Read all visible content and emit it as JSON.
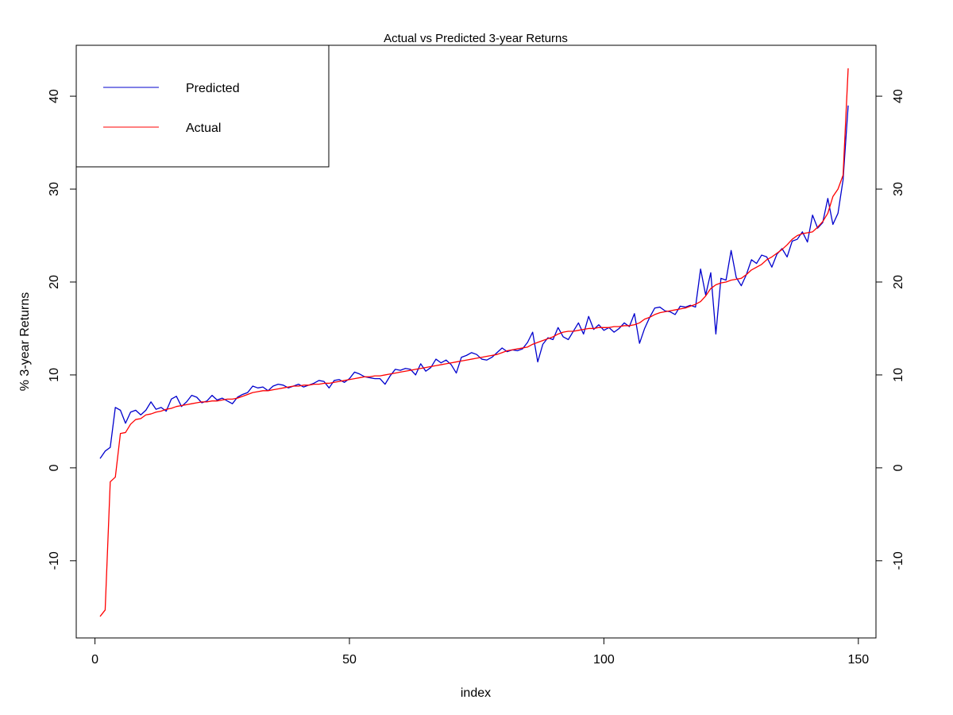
{
  "chart_data": {
    "type": "line",
    "title": "Actual vs Predicted 3-year Returns",
    "xlabel": "index",
    "ylabel": "% 3-year Returns",
    "xlim": [
      1,
      148
    ],
    "ylim": [
      -16,
      43
    ],
    "x_ticks": [
      "0",
      "50",
      "100",
      "150"
    ],
    "y_ticks": [
      "-10",
      "0",
      "10",
      "20",
      "30",
      "40"
    ],
    "right_y_ticks": [
      "-10",
      "0",
      "10",
      "20",
      "30",
      "40"
    ],
    "legend_position": "top-left",
    "series": [
      {
        "name": "Predicted",
        "color": "#0000CD",
        "values": [
          1.0,
          1.8,
          2.2,
          6.5,
          6.2,
          4.8,
          6.0,
          6.2,
          5.7,
          6.2,
          7.1,
          6.3,
          6.5,
          6.1,
          7.4,
          7.7,
          6.6,
          7.1,
          7.8,
          7.6,
          7.0,
          7.2,
          7.8,
          7.3,
          7.5,
          7.2,
          6.9,
          7.6,
          7.9,
          8.1,
          8.8,
          8.6,
          8.7,
          8.3,
          8.8,
          9.0,
          8.9,
          8.6,
          8.8,
          9.0,
          8.7,
          8.9,
          9.1,
          9.4,
          9.3,
          8.6,
          9.4,
          9.5,
          9.2,
          9.6,
          10.3,
          10.1,
          9.8,
          9.7,
          9.6,
          9.6,
          9.0,
          9.9,
          10.6,
          10.5,
          10.7,
          10.6,
          10.0,
          11.2,
          10.4,
          10.8,
          11.7,
          11.3,
          11.6,
          11.1,
          10.2,
          11.9,
          12.1,
          12.4,
          12.2,
          11.7,
          11.6,
          11.9,
          12.4,
          12.9,
          12.5,
          12.7,
          12.6,
          12.8,
          13.5,
          14.6,
          11.4,
          13.3,
          14.0,
          13.8,
          15.1,
          14.1,
          13.8,
          14.7,
          15.6,
          14.4,
          16.3,
          14.9,
          15.4,
          14.8,
          15.1,
          14.6,
          15.0,
          15.6,
          15.2,
          16.6,
          13.4,
          15.0,
          16.2,
          17.2,
          17.3,
          16.9,
          16.8,
          16.5,
          17.4,
          17.3,
          17.5,
          17.3,
          21.4,
          18.6,
          21.0,
          14.4,
          20.4,
          20.2,
          23.4,
          20.5,
          19.6,
          20.8,
          22.4,
          22.0,
          22.9,
          22.7,
          21.6,
          23.0,
          23.6,
          22.7,
          24.4,
          24.6,
          25.4,
          24.3,
          27.2,
          25.8,
          26.4,
          29.0,
          26.2,
          27.4,
          31.0,
          39.0
        ]
      },
      {
        "name": "Actual",
        "color": "#FF0000",
        "values": [
          -16.0,
          -15.3,
          -1.5,
          -1.0,
          3.7,
          3.8,
          4.7,
          5.2,
          5.3,
          5.7,
          5.8,
          6.0,
          6.1,
          6.3,
          6.4,
          6.6,
          6.7,
          6.8,
          6.9,
          7.0,
          7.1,
          7.1,
          7.2,
          7.2,
          7.3,
          7.4,
          7.4,
          7.5,
          7.7,
          7.9,
          8.1,
          8.2,
          8.3,
          8.3,
          8.4,
          8.5,
          8.6,
          8.7,
          8.8,
          8.8,
          8.9,
          8.9,
          9.0,
          9.0,
          9.1,
          9.1,
          9.2,
          9.3,
          9.4,
          9.5,
          9.6,
          9.7,
          9.8,
          9.8,
          9.9,
          9.9,
          10.0,
          10.1,
          10.2,
          10.3,
          10.4,
          10.5,
          10.6,
          10.7,
          10.8,
          10.9,
          11.0,
          11.1,
          11.2,
          11.3,
          11.4,
          11.5,
          11.6,
          11.7,
          11.8,
          11.9,
          12.0,
          12.1,
          12.2,
          12.4,
          12.6,
          12.7,
          12.8,
          12.9,
          13.0,
          13.3,
          13.5,
          13.7,
          13.9,
          14.1,
          14.4,
          14.6,
          14.7,
          14.7,
          14.8,
          14.9,
          15.0,
          15.0,
          15.1,
          15.1,
          15.1,
          15.2,
          15.2,
          15.3,
          15.3,
          15.4,
          15.6,
          16.0,
          16.2,
          16.5,
          16.7,
          16.8,
          16.9,
          17.0,
          17.1,
          17.2,
          17.4,
          17.6,
          17.9,
          18.5,
          19.3,
          19.7,
          19.9,
          20.0,
          20.2,
          20.3,
          20.4,
          20.8,
          21.3,
          21.6,
          21.9,
          22.4,
          22.7,
          23.1,
          23.5,
          24.0,
          24.6,
          25.0,
          25.2,
          25.3,
          25.4,
          25.9,
          26.5,
          27.4,
          29.2,
          30.0,
          31.5,
          43.0
        ]
      }
    ]
  }
}
